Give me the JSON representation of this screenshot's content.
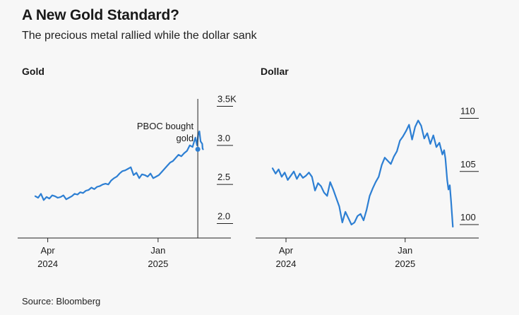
{
  "header": {
    "title": "A New Gold Standard?",
    "subtitle": "The precious metal rallied while the dollar sank"
  },
  "source": "Source: Bloomberg",
  "colors": {
    "line": "#2d7fd3",
    "axis": "#222222",
    "text": "#1a1a1a"
  },
  "chart_data": [
    {
      "type": "line",
      "title": "Gold",
      "xlabel": "",
      "ylabel": "",
      "ylim": [
        1.95,
        3.55
      ],
      "y_ticks": [
        {
          "value": 3.5,
          "label": "3.5K"
        },
        {
          "value": 3.0,
          "label": "3.0"
        },
        {
          "value": 2.5,
          "label": "2.5"
        },
        {
          "value": 2.0,
          "label": "2.0"
        }
      ],
      "x_ticks": [
        {
          "date": "2024-04-01",
          "label": [
            "Apr",
            "2024"
          ]
        },
        {
          "date": "2025-01-01",
          "label": [
            "Jan",
            "2025"
          ]
        }
      ],
      "xlim": [
        "2024-03-01",
        "2025-05-15"
      ],
      "annotation": {
        "text": [
          "PBOC bought",
          "gold"
        ],
        "date": "2025-04-10",
        "value": 2.95
      },
      "grid": false,
      "series": [
        {
          "x": [
            "2024-03-01",
            "2024-03-08",
            "2024-03-15",
            "2024-03-22",
            "2024-03-29",
            "2024-04-05",
            "2024-04-12",
            "2024-04-19",
            "2024-04-26",
            "2024-05-03",
            "2024-05-10",
            "2024-05-17",
            "2024-05-24",
            "2024-05-31",
            "2024-06-07",
            "2024-06-14",
            "2024-06-21",
            "2024-06-28",
            "2024-07-05",
            "2024-07-12",
            "2024-07-19",
            "2024-07-26",
            "2024-08-02",
            "2024-08-09",
            "2024-08-16",
            "2024-08-23",
            "2024-08-30",
            "2024-09-06",
            "2024-09-13",
            "2024-09-20",
            "2024-09-27",
            "2024-10-04",
            "2024-10-11",
            "2024-10-18",
            "2024-10-25",
            "2024-11-01",
            "2024-11-08",
            "2024-11-15",
            "2024-11-22",
            "2024-11-29",
            "2024-12-06",
            "2024-12-13",
            "2024-12-20",
            "2024-12-27",
            "2025-01-03",
            "2025-01-10",
            "2025-01-17",
            "2025-01-24",
            "2025-01-31",
            "2025-02-07",
            "2025-02-14",
            "2025-02-21",
            "2025-02-28",
            "2025-03-07",
            "2025-03-14",
            "2025-03-21",
            "2025-03-28",
            "2025-04-01",
            "2025-04-04",
            "2025-04-08",
            "2025-04-11",
            "2025-04-14",
            "2025-04-17",
            "2025-04-21",
            "2025-04-22",
            "2025-04-23"
          ],
          "values": [
            2.35,
            2.33,
            2.38,
            2.3,
            2.34,
            2.32,
            2.36,
            2.35,
            2.33,
            2.34,
            2.36,
            2.31,
            2.33,
            2.35,
            2.38,
            2.37,
            2.4,
            2.39,
            2.42,
            2.43,
            2.46,
            2.44,
            2.47,
            2.48,
            2.5,
            2.51,
            2.5,
            2.55,
            2.58,
            2.6,
            2.64,
            2.67,
            2.68,
            2.7,
            2.72,
            2.62,
            2.65,
            2.58,
            2.63,
            2.62,
            2.6,
            2.64,
            2.58,
            2.6,
            2.62,
            2.66,
            2.7,
            2.74,
            2.78,
            2.8,
            2.84,
            2.88,
            2.86,
            2.9,
            2.93,
            3.0,
            2.98,
            3.05,
            3.1,
            3.0,
            3.14,
            3.18,
            3.05,
            3.02,
            2.96,
            2.95
          ]
        }
      ]
    },
    {
      "type": "line",
      "title": "Dollar",
      "xlabel": "",
      "ylabel": "",
      "ylim": [
        99.2,
        111.5
      ],
      "y_ticks": [
        {
          "value": 110,
          "label": "110"
        },
        {
          "value": 105,
          "label": "105"
        },
        {
          "value": 100,
          "label": "100"
        }
      ],
      "x_ticks": [
        {
          "date": "2024-04-01",
          "label": [
            "Apr",
            "2024"
          ]
        },
        {
          "date": "2025-01-01",
          "label": [
            "Jan",
            "2025"
          ]
        }
      ],
      "xlim": [
        "2024-03-01",
        "2025-05-15"
      ],
      "grid": false,
      "series": [
        {
          "x": [
            "2024-03-01",
            "2024-03-08",
            "2024-03-15",
            "2024-03-22",
            "2024-03-29",
            "2024-04-05",
            "2024-04-12",
            "2024-04-19",
            "2024-04-26",
            "2024-05-03",
            "2024-05-10",
            "2024-05-17",
            "2024-05-24",
            "2024-05-31",
            "2024-06-07",
            "2024-06-14",
            "2024-06-21",
            "2024-06-28",
            "2024-07-05",
            "2024-07-12",
            "2024-07-19",
            "2024-07-26",
            "2024-08-02",
            "2024-08-09",
            "2024-08-16",
            "2024-08-23",
            "2024-08-30",
            "2024-09-06",
            "2024-09-13",
            "2024-09-20",
            "2024-09-27",
            "2024-10-04",
            "2024-10-11",
            "2024-10-18",
            "2024-10-25",
            "2024-11-01",
            "2024-11-08",
            "2024-11-15",
            "2024-11-22",
            "2024-11-29",
            "2024-12-06",
            "2024-12-13",
            "2024-12-20",
            "2024-12-27",
            "2025-01-03",
            "2025-01-10",
            "2025-01-17",
            "2025-01-24",
            "2025-01-31",
            "2025-02-07",
            "2025-02-14",
            "2025-02-21",
            "2025-02-28",
            "2025-03-07",
            "2025-03-14",
            "2025-03-21",
            "2025-03-28",
            "2025-04-01",
            "2025-04-04",
            "2025-04-08",
            "2025-04-11",
            "2025-04-14",
            "2025-04-17",
            "2025-04-21"
          ],
          "values": [
            105.3,
            104.8,
            105.2,
            104.5,
            104.9,
            104.2,
            104.6,
            105.0,
            104.3,
            104.8,
            104.4,
            104.6,
            104.9,
            104.5,
            103.2,
            103.9,
            103.6,
            103.0,
            102.7,
            104.0,
            103.3,
            102.5,
            101.7,
            100.2,
            101.2,
            100.6,
            100.0,
            100.2,
            100.8,
            101.0,
            100.4,
            101.4,
            102.7,
            103.4,
            104.0,
            104.5,
            105.6,
            106.3,
            106.0,
            105.7,
            106.4,
            106.9,
            107.9,
            108.3,
            108.8,
            109.4,
            108.0,
            109.2,
            109.8,
            109.3,
            108.1,
            108.6,
            107.6,
            108.4,
            107.3,
            107.7,
            106.6,
            107.0,
            106.2,
            104.2,
            103.3,
            103.7,
            102.2,
            99.8
          ]
        }
      ]
    }
  ]
}
